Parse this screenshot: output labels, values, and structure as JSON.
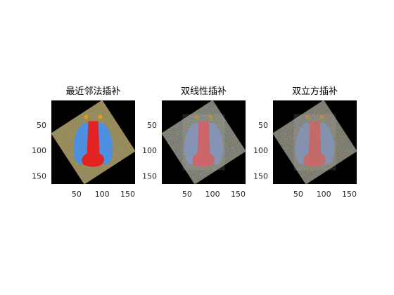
{
  "chart_data": [
    {
      "type": "image",
      "title": "最近邻法插补",
      "xlim": [
        0.5,
        164.5
      ],
      "ylim": [
        0.5,
        164.5
      ],
      "xticks": [
        50,
        100,
        150
      ],
      "yticks": [
        50,
        100,
        150
      ],
      "style": "nearest"
    },
    {
      "type": "image",
      "title": "双线性插补",
      "xlim": [
        0.5,
        164.5
      ],
      "ylim": [
        0.5,
        164.5
      ],
      "xticks": [
        50,
        100,
        150
      ],
      "yticks": [
        50,
        100,
        150
      ],
      "style": "bilinear"
    },
    {
      "type": "image",
      "title": "双立方插补",
      "xlim": [
        0.5,
        164.5
      ],
      "ylim": [
        0.5,
        164.5
      ],
      "xticks": [
        50,
        100,
        150
      ],
      "yticks": [
        50,
        100,
        150
      ],
      "style": "bicubic"
    }
  ]
}
